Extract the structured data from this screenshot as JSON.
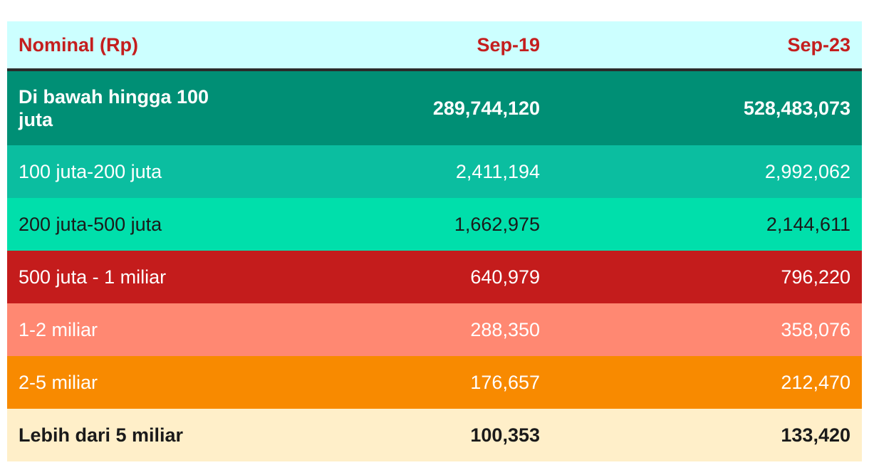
{
  "chart_data": {
    "type": "table",
    "columns": [
      "Nominal (Rp)",
      "Sep-19",
      "Sep-23"
    ],
    "rows": [
      {
        "label": "Di bawah hingga 100 juta",
        "sep19": "289,744,120",
        "sep23": "528,483,073",
        "bg": "#008f75",
        "color": "#ffffff",
        "bold": true
      },
      {
        "label": "100 juta-200 juta",
        "sep19": "2,411,194",
        "sep23": "2,992,062",
        "bg": "#0bbea0",
        "color": "#ffffff",
        "bold": false
      },
      {
        "label": "200 juta-500 juta",
        "sep19": "1,662,975",
        "sep23": "2,144,611",
        "bg": "#00dfab",
        "color": "#1a1a1a",
        "bold": false
      },
      {
        "label": "500 juta - 1 miliar",
        "sep19": "640,979",
        "sep23": "796,220",
        "bg": "#c41c1c",
        "color": "#ffffff",
        "bold": false
      },
      {
        "label": "1-2 miliar",
        "sep19": "288,350",
        "sep23": "358,076",
        "bg": "#ff8872",
        "color": "#ffffff",
        "bold": false
      },
      {
        "label": "2-5 miliar",
        "sep19": "176,657",
        "sep23": "212,470",
        "bg": "#f88a00",
        "color": "#ffffff",
        "bold": false
      },
      {
        "label": "Lebih dari 5 miliar",
        "sep19": "100,353",
        "sep23": "133,420",
        "bg": "#ffefc9",
        "color": "#1a1a1a",
        "bold": true
      }
    ],
    "header_bg": "#ccffff",
    "header_color": "#c41e1e"
  }
}
